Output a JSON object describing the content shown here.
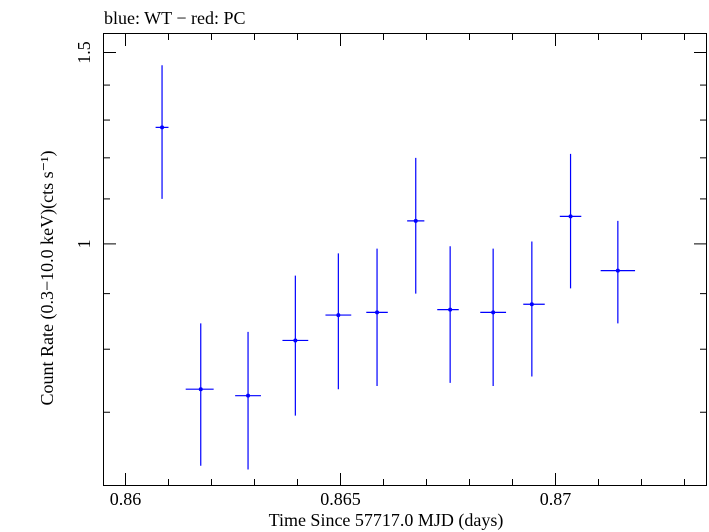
{
  "chart_data": {
    "type": "scatter",
    "title": "blue: WT − red: PC",
    "xlabel": "Time Since 57717.0 MJD (days)",
    "ylabel": "Count Rate (0.3−10.0 keV)(cts s⁻¹)",
    "xlim": [
      0.8595,
      0.8735
    ],
    "ylim": [
      0.6,
      1.56
    ],
    "y_scale": "log",
    "x_ticks": [
      0.86,
      0.865,
      0.87
    ],
    "x_tick_labels": [
      "0.86",
      "0.865",
      "0.87"
    ],
    "y_ticks": [
      1,
      1.5
    ],
    "y_tick_labels": [
      "1",
      "1.5"
    ],
    "grid": false,
    "series": [
      {
        "color": "#0000ff",
        "points": [
          {
            "x": 0.86085,
            "y": 1.28,
            "xerr_lo": 0.00015,
            "xerr_hi": 0.00015,
            "y_lo": 1.1,
            "y_hi": 1.46
          },
          {
            "x": 0.86175,
            "y": 0.735,
            "xerr_lo": 0.00035,
            "xerr_hi": 0.0003,
            "y_lo": 0.625,
            "y_hi": 0.845
          },
          {
            "x": 0.86285,
            "y": 0.725,
            "xerr_lo": 0.0003,
            "xerr_hi": 0.0003,
            "y_lo": 0.62,
            "y_hi": 0.83
          },
          {
            "x": 0.86395,
            "y": 0.815,
            "xerr_lo": 0.0003,
            "xerr_hi": 0.0003,
            "y_lo": 0.695,
            "y_hi": 0.935
          },
          {
            "x": 0.86495,
            "y": 0.86,
            "xerr_lo": 0.0003,
            "xerr_hi": 0.0003,
            "y_lo": 0.735,
            "y_hi": 0.98
          },
          {
            "x": 0.86585,
            "y": 0.865,
            "xerr_lo": 0.00025,
            "xerr_hi": 0.00025,
            "y_lo": 0.74,
            "y_hi": 0.99
          },
          {
            "x": 0.86675,
            "y": 1.05,
            "xerr_lo": 0.0002,
            "xerr_hi": 0.0002,
            "y_lo": 0.9,
            "y_hi": 1.2
          },
          {
            "x": 0.86755,
            "y": 0.87,
            "xerr_lo": 0.0003,
            "xerr_hi": 0.0002,
            "y_lo": 0.745,
            "y_hi": 0.995
          },
          {
            "x": 0.86855,
            "y": 0.865,
            "xerr_lo": 0.0003,
            "xerr_hi": 0.0003,
            "y_lo": 0.74,
            "y_hi": 0.99
          },
          {
            "x": 0.86945,
            "y": 0.88,
            "xerr_lo": 0.0002,
            "xerr_hi": 0.0003,
            "y_lo": 0.755,
            "y_hi": 1.005
          },
          {
            "x": 0.87035,
            "y": 1.06,
            "xerr_lo": 0.00025,
            "xerr_hi": 0.00025,
            "y_lo": 0.91,
            "y_hi": 1.21
          },
          {
            "x": 0.87145,
            "y": 0.945,
            "xerr_lo": 0.0004,
            "xerr_hi": 0.0004,
            "y_lo": 0.845,
            "y_hi": 1.05
          }
        ]
      }
    ]
  }
}
